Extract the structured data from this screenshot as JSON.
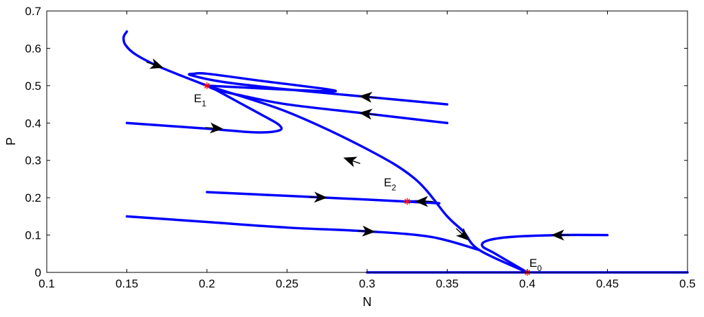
{
  "chart_data": {
    "type": "line",
    "title": "",
    "xlabel": "N",
    "ylabel": "P",
    "xlim": [
      0.1,
      0.5
    ],
    "ylim": [
      0,
      0.7
    ],
    "xticks": [
      0.1,
      0.15,
      0.2,
      0.25,
      0.3,
      0.35,
      0.4,
      0.45,
      0.5
    ],
    "yticks": [
      0,
      0.1,
      0.2,
      0.3,
      0.4,
      0.5,
      0.6,
      0.7
    ],
    "xtick_labels": [
      "0.1",
      "0.15",
      "0.2",
      "0.25",
      "0.3",
      "0.35",
      "0.4",
      "0.45",
      "0.5"
    ],
    "ytick_labels": [
      "0",
      "0.1",
      "0.2",
      "0.3",
      "0.4",
      "0.5",
      "0.6",
      "0.7"
    ],
    "grid": false,
    "line_color": "#0000ff",
    "arrow_color": "#000000",
    "equilibrium_color": "#ff0000",
    "trajectories": [
      {
        "points": [
          [
            0.15,
            0.645
          ],
          [
            0.148,
            0.63
          ],
          [
            0.149,
            0.61
          ],
          [
            0.155,
            0.585
          ],
          [
            0.168,
            0.555
          ],
          [
            0.185,
            0.525
          ],
          [
            0.2,
            0.5
          ]
        ],
        "arrows": [
          [
            0.168,
            0.555,
            0.175,
            0.545
          ]
        ]
      },
      {
        "points": [
          [
            0.35,
            0.45
          ],
          [
            0.3,
            0.47
          ],
          [
            0.25,
            0.49
          ],
          [
            0.21,
            0.51
          ],
          [
            0.19,
            0.528
          ],
          [
            0.192,
            0.532
          ],
          [
            0.2,
            0.532
          ],
          [
            0.23,
            0.515
          ],
          [
            0.28,
            0.485
          ],
          [
            0.2,
            0.5
          ]
        ],
        "arrows": [
          [
            0.3,
            0.47,
            0.29,
            0.474
          ]
        ]
      },
      {
        "points": [
          [
            0.35,
            0.4
          ],
          [
            0.3,
            0.425
          ],
          [
            0.25,
            0.45
          ],
          [
            0.22,
            0.475
          ],
          [
            0.205,
            0.49
          ],
          [
            0.2,
            0.5
          ]
        ],
        "arrows": [
          [
            0.3,
            0.425,
            0.29,
            0.43
          ]
        ]
      },
      {
        "points": [
          [
            0.15,
            0.4
          ],
          [
            0.2,
            0.385
          ],
          [
            0.23,
            0.375
          ],
          [
            0.245,
            0.38
          ],
          [
            0.245,
            0.395
          ],
          [
            0.235,
            0.42
          ],
          [
            0.22,
            0.455
          ],
          [
            0.205,
            0.49
          ],
          [
            0.2,
            0.5
          ]
        ],
        "arrows": [
          [
            0.205,
            0.386,
            0.212,
            0.384
          ]
        ]
      },
      {
        "points": [
          [
            0.2,
            0.215
          ],
          [
            0.25,
            0.205
          ],
          [
            0.3,
            0.195
          ],
          [
            0.345,
            0.185
          ]
        ],
        "arrows": [
          [
            0.27,
            0.201,
            0.278,
            0.2
          ]
        ]
      },
      {
        "points": [
          [
            0.345,
            0.185
          ],
          [
            0.335,
            0.19
          ],
          [
            0.325,
            0.19
          ]
        ],
        "arrows": [
          [
            0.335,
            0.19,
            0.328,
            0.19
          ]
        ]
      },
      {
        "points": [
          [
            0.15,
            0.15
          ],
          [
            0.2,
            0.135
          ],
          [
            0.25,
            0.12
          ],
          [
            0.3,
            0.11
          ],
          [
            0.34,
            0.095
          ],
          [
            0.37,
            0.06
          ]
        ],
        "arrows": [
          [
            0.3,
            0.11,
            0.308,
            0.108
          ]
        ]
      },
      {
        "points": [
          [
            0.45,
            0.1
          ],
          [
            0.42,
            0.1
          ],
          [
            0.39,
            0.095
          ],
          [
            0.375,
            0.085
          ],
          [
            0.372,
            0.07
          ],
          [
            0.38,
            0.05
          ],
          [
            0.4,
            0.0
          ]
        ],
        "arrows": [
          [
            0.42,
            0.1,
            0.412,
            0.1
          ]
        ]
      },
      {
        "points": [
          [
            0.2,
            0.5
          ],
          [
            0.25,
            0.43
          ],
          [
            0.3,
            0.33
          ],
          [
            0.33,
            0.25
          ],
          [
            0.35,
            0.15
          ],
          [
            0.36,
            0.11
          ],
          [
            0.37,
            0.06
          ],
          [
            0.4,
            0.0
          ]
        ],
        "arrows": [
          [
            0.29,
            0.3,
            0.284,
            0.309
          ],
          [
            0.36,
            0.1,
            0.365,
            0.08
          ]
        ]
      },
      {
        "points": [
          [
            0.3,
            0.0
          ],
          [
            0.5,
            0.0
          ]
        ],
        "arrows": []
      }
    ],
    "equilibria": [
      {
        "name": "E1",
        "label_main": "E",
        "label_sub": "1",
        "x": 0.2,
        "y": 0.5
      },
      {
        "name": "E2",
        "label_main": "E",
        "label_sub": "2",
        "x": 0.325,
        "y": 0.19
      },
      {
        "name": "E0",
        "label_main": "E",
        "label_sub": "0",
        "x": 0.4,
        "y": 0.0
      }
    ]
  }
}
